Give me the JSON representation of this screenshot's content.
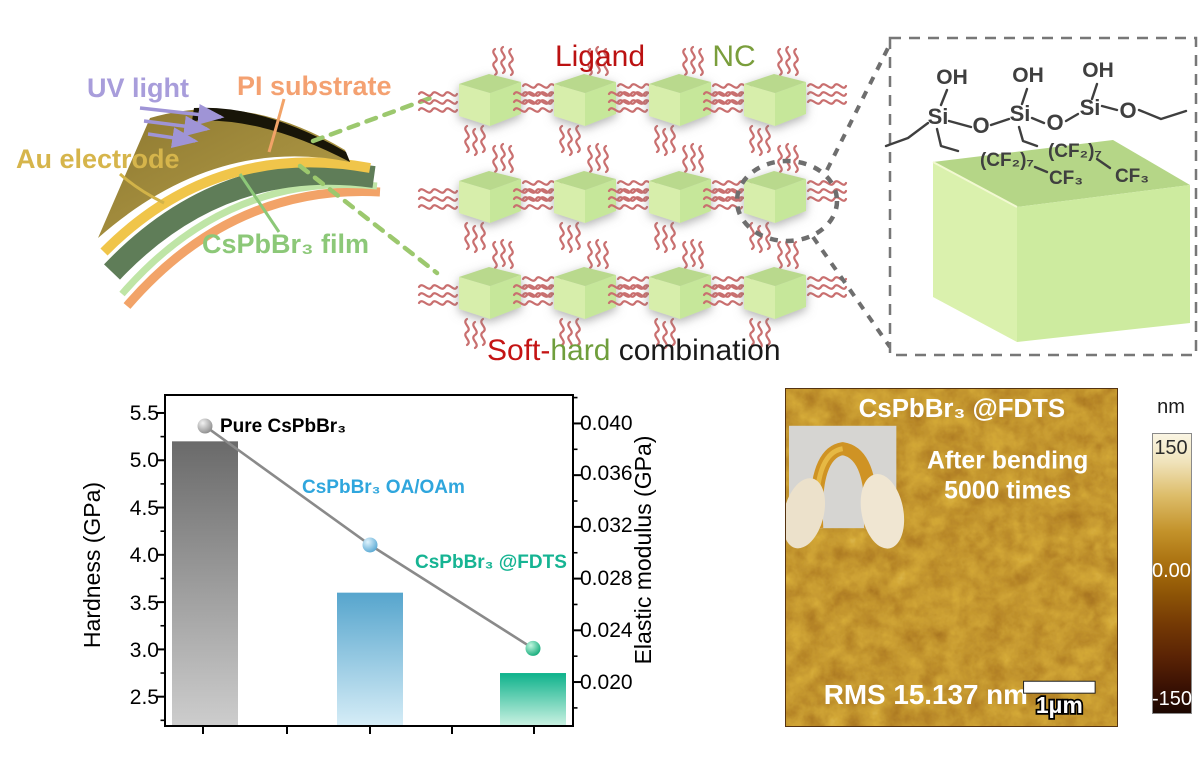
{
  "device_schematic": {
    "uv_light_label": "UV light",
    "pi_substrate_label": "PI substrate",
    "au_electrode_label": "Au electrode",
    "film_label": "CsPbBr₃ film"
  },
  "nc_array": {
    "ligand_label": "Ligand",
    "nc_label": "NC",
    "caption": [
      "Soft-",
      "hard",
      " combination"
    ],
    "caption_colors": [
      "#c41414",
      "#6f9e3c",
      "#1a1a1a"
    ]
  },
  "fdts_molecule": {
    "oh": "OH",
    "si": "Si",
    "o": "O",
    "cf2": "(CF₂)₇",
    "cf3": "CF₃"
  },
  "chart_data": {
    "type": "bar",
    "categories": [
      "Pure CsPbBr₃",
      "CsPbBr₃ OA/OAm",
      "CsPbBr₃ @FDTS"
    ],
    "series": [
      {
        "name": "Hardness",
        "type": "bar",
        "axis": "left",
        "values": [
          5.2,
          3.6,
          2.75
        ]
      },
      {
        "name": "Elastic modulus",
        "type": "line",
        "axis": "right",
        "values": [
          0.0398,
          0.0306,
          0.0226
        ]
      }
    ],
    "left_axis": {
      "label": "Hardness (GPa)",
      "ticks": [
        "2.5",
        "3.0",
        "3.5",
        "4.0",
        "4.5",
        "5.0",
        "5.5"
      ],
      "range": [
        2.19,
        5.69
      ]
    },
    "right_axis": {
      "label": "Elastic modulus (GPa)",
      "ticks": [
        "0.020",
        "0.024",
        "0.028",
        "0.032",
        "0.036",
        "0.040"
      ],
      "range": [
        0.0166,
        0.0422
      ]
    },
    "x_axis": {
      "labels": [],
      "tick_count": 5
    },
    "annotations": [
      "Pure CsPbBr₃",
      "CsPbBr₃ OA/OAm",
      "CsPbBr₃ @FDTS"
    ],
    "annotation_colors": [
      "#000000",
      "#2fa6dd",
      "#16b493"
    ],
    "line_color": "#8a8a8a",
    "grid": false,
    "legend": "none"
  },
  "afm": {
    "title": "CsPbBr₃ @FDTS",
    "note_line1": "After bending",
    "note_line2": "5000 times",
    "rms_label": "RMS 15.137 nm",
    "scale_bar_label": "1μm",
    "colorbar": {
      "unit": "nm",
      "max": "150",
      "mid": "0.00",
      "min": "-150"
    }
  }
}
